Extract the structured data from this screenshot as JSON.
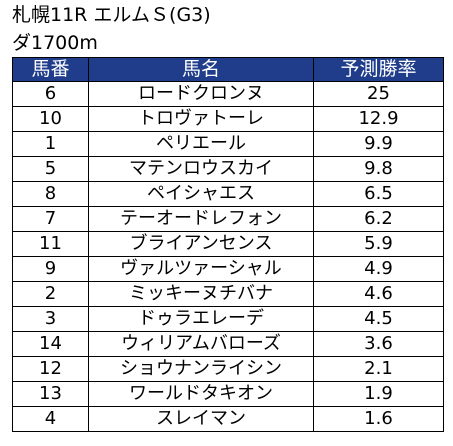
{
  "race": {
    "title": "札幌11R エルムＳ(G3)",
    "course": "ダ1700m"
  },
  "table": {
    "headers": {
      "number": "馬番",
      "horse": "馬名",
      "prediction": "予測勝率"
    },
    "rows": [
      {
        "number": "6",
        "horse": "ロードクロンヌ",
        "prediction": "25"
      },
      {
        "number": "10",
        "horse": "トロヴァトーレ",
        "prediction": "12.9"
      },
      {
        "number": "1",
        "horse": "ペリエール",
        "prediction": "9.9"
      },
      {
        "number": "5",
        "horse": "マテンロウスカイ",
        "prediction": "9.8"
      },
      {
        "number": "8",
        "horse": "ペイシャエス",
        "prediction": "6.5"
      },
      {
        "number": "7",
        "horse": "テーオードレフォン",
        "prediction": "6.2"
      },
      {
        "number": "11",
        "horse": "ブライアンセンス",
        "prediction": "5.9"
      },
      {
        "number": "9",
        "horse": "ヴァルツァーシャル",
        "prediction": "4.9"
      },
      {
        "number": "2",
        "horse": "ミッキーヌチバナ",
        "prediction": "4.6"
      },
      {
        "number": "3",
        "horse": "ドゥラエレーデ",
        "prediction": "4.5"
      },
      {
        "number": "14",
        "horse": "ウィリアムバローズ",
        "prediction": "3.6"
      },
      {
        "number": "12",
        "horse": "ショウナンライシン",
        "prediction": "2.1"
      },
      {
        "number": "13",
        "horse": "ワールドタキオン",
        "prediction": "1.9"
      },
      {
        "number": "4",
        "horse": "スレイマン",
        "prediction": "1.6"
      }
    ]
  },
  "colors": {
    "header_background": "#1f3d8a",
    "header_text": "#ffffff",
    "border": "#000000"
  }
}
